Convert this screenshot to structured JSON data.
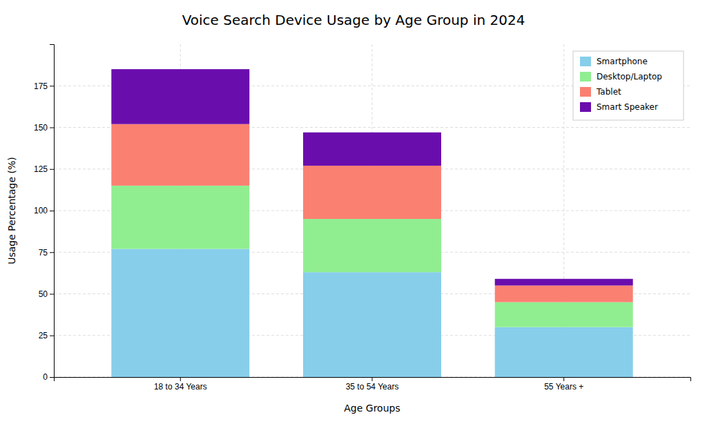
{
  "chart_data": {
    "type": "bar",
    "title": "Voice Search Device Usage by Age Group in 2024",
    "xlabel": "Age Groups",
    "ylabel": "Usage Percentage (%)",
    "categories": [
      "18 to 34 Years",
      "35 to 54 Years",
      "55 Years +"
    ],
    "series": [
      {
        "name": "Smartphone",
        "color": "#87CEEB",
        "values": [
          77,
          63,
          30
        ]
      },
      {
        "name": "Desktop/Laptop",
        "color": "#90EE90",
        "values": [
          38,
          32,
          15
        ]
      },
      {
        "name": "Tablet",
        "color": "#FA8072",
        "values": [
          37,
          32,
          10
        ]
      },
      {
        "name": "Smart Speaker",
        "color": "#6A0DAD",
        "values": [
          33,
          20,
          4
        ]
      }
    ],
    "ylim": [
      0,
      200
    ],
    "yticks": [
      0,
      25,
      50,
      75,
      100,
      125,
      150,
      175
    ],
    "stacked": true,
    "grid": true,
    "legend": "upper right"
  }
}
